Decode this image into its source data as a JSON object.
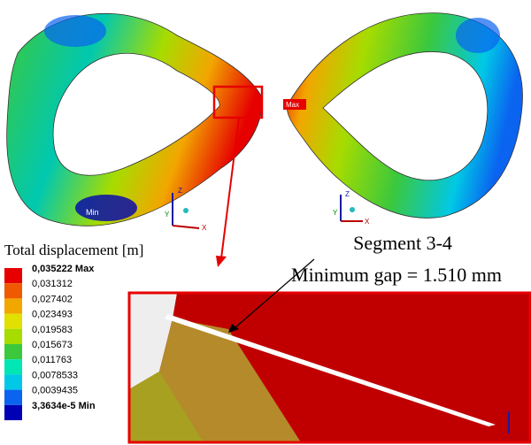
{
  "left_part": {
    "min_label": "Min",
    "triad": {
      "z": "Z",
      "y": "Y",
      "x": "X"
    }
  },
  "right_part": {
    "max_label": "Max",
    "triad": {
      "z": "Z",
      "y": "Y",
      "x": "X"
    }
  },
  "caption": {
    "segment": "Segment 3-4",
    "gap": "Minimum gap = 1.510 mm"
  },
  "legend": {
    "title": "Total displacement [m]",
    "entries": [
      {
        "label": "0,035222 Max",
        "color": "#e60000"
      },
      {
        "label": "0,031312",
        "color": "#ef5a00"
      },
      {
        "label": "0,027402",
        "color": "#f2a600"
      },
      {
        "label": "0,023493",
        "color": "#e2e000"
      },
      {
        "label": "0,019583",
        "color": "#a6dc00"
      },
      {
        "label": "0,015673",
        "color": "#3cc83c"
      },
      {
        "label": "0,011763",
        "color": "#00e6b4"
      },
      {
        "label": "0,0078533",
        "color": "#00c8e6"
      },
      {
        "label": "0,0039435",
        "color": "#0a64f0"
      },
      {
        "label": "3,3634e-5 Min",
        "color": "#0000b4"
      }
    ]
  }
}
